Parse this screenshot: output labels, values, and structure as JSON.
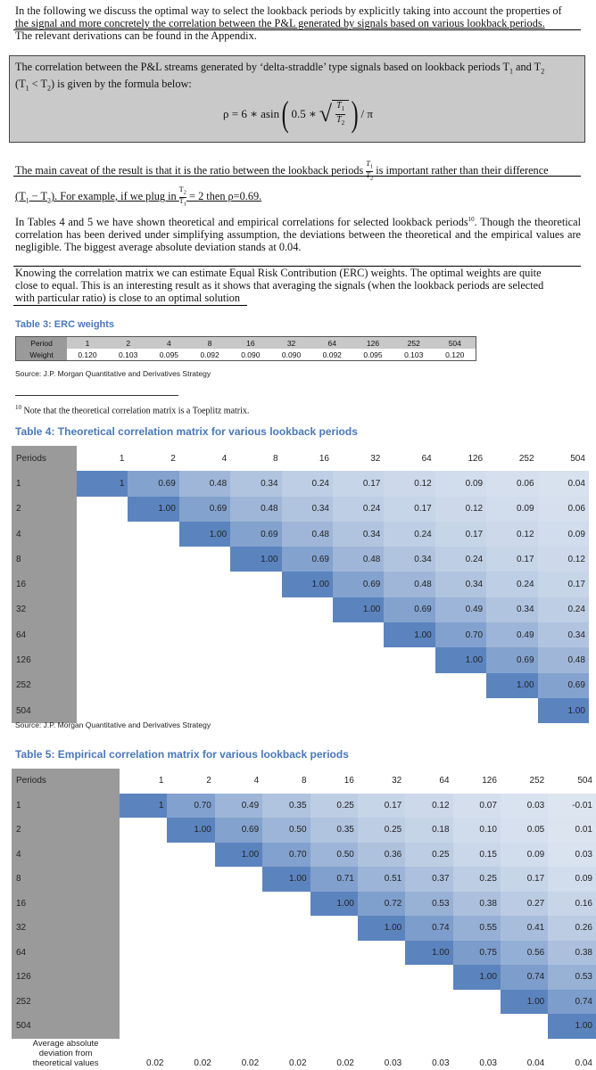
{
  "intro": {
    "line1": "In the following we discuss the optimal way to select the lookback periods by explicitly taking into account the properties of",
    "line2": "the signal and more concretely the correlation between the P&L generated by signals based on various lookback periods.",
    "line3": "The relevant derivations can be found in the Appendix."
  },
  "box": {
    "text_a": "The correlation between the P&L streams generated by ‘delta-straddle’ type signals based on lookback periods T",
    "text_b": " and T",
    "text_c": "(T",
    "text_d": " < T",
    "text_e": ") is given by the formula below:",
    "formula_lhs": "ρ = 6 ∗ asin",
    "formula_mid": "0.5 ∗",
    "formula_rhs": "/ π",
    "t1": "T",
    "sub1": "1",
    "t2": "T",
    "sub2": "2"
  },
  "caveat": {
    "a": "The main caveat of the result is that it is the ratio between the lookback periods",
    "b": "is important rather than their difference",
    "c": "(T",
    "d": " − T",
    "e": "). For example, if we plug in",
    "f": "= 2 then ρ=0.69."
  },
  "tables_para": {
    "a": "In Tables 4 and 5 we have shown theoretical and empirical correlations for selected lookback periods",
    "ref": "10",
    "b": ". Though the theoretical correlation has been derived under simplifying assumption, the deviations between the theoretical and the empirical values are negligible. The biggest average absolute deviation stands at 0.04."
  },
  "erc_para": {
    "line1": "Knowing the correlation matrix we can estimate Equal Risk Contribution (ERC) weights. The optimal weights are quite",
    "line2": "close to equal. This is an interesting result as it shows that averaging the signals (when the lookback periods are selected",
    "line3": "with particular ratio) is close to an optimal solution"
  },
  "table3": {
    "caption": "Table 3: ERC weights",
    "row1_label": "Period",
    "row2_label": "Weight",
    "periods": [
      "1",
      "2",
      "4",
      "8",
      "16",
      "32",
      "64",
      "126",
      "252",
      "504"
    ],
    "weights": [
      "0.120",
      "0.103",
      "0.095",
      "0.092",
      "0.090",
      "0.090",
      "0.092",
      "0.095",
      "0.103",
      "0.120"
    ],
    "source": "Source: J.P. Morgan Quantitative and Derivatives Strategy"
  },
  "footnote": {
    "num": "10",
    "text": " Note that the theoretical correlation matrix is a Toeplitz matrix."
  },
  "table4": {
    "caption": "Table 4: Theoretical correlation matrix for various lookback periods",
    "corner": "Periods",
    "periods": [
      "1",
      "2",
      "4",
      "8",
      "16",
      "32",
      "64",
      "126",
      "252",
      "504"
    ],
    "rows": [
      [
        "1",
        "0.69",
        "0.48",
        "0.34",
        "0.24",
        "0.17",
        "0.12",
        "0.09",
        "0.06",
        "0.04"
      ],
      [
        "1.00",
        "0.69",
        "0.48",
        "0.34",
        "0.24",
        "0.17",
        "0.12",
        "0.09",
        "0.06"
      ],
      [
        "1.00",
        "0.69",
        "0.48",
        "0.34",
        "0.24",
        "0.17",
        "0.12",
        "0.09"
      ],
      [
        "1.00",
        "0.69",
        "0.48",
        "0.34",
        "0.24",
        "0.17",
        "0.12"
      ],
      [
        "1.00",
        "0.69",
        "0.48",
        "0.34",
        "0.24",
        "0.17"
      ],
      [
        "1.00",
        "0.69",
        "0.49",
        "0.34",
        "0.24"
      ],
      [
        "1.00",
        "0.70",
        "0.49",
        "0.34"
      ],
      [
        "1.00",
        "0.69",
        "0.48"
      ],
      [
        "1.00",
        "0.69"
      ],
      [
        "1.00"
      ]
    ],
    "source": "Source: J.P. Morgan Quantitative and Derivatives Strategy"
  },
  "table5": {
    "caption": "Table 5: Empirical correlation matrix for various lookback periods",
    "corner": "Periods",
    "periods": [
      "1",
      "2",
      "4",
      "8",
      "16",
      "32",
      "64",
      "126",
      "252",
      "504"
    ],
    "rows": [
      [
        "1",
        "0.70",
        "0.49",
        "0.35",
        "0.25",
        "0.17",
        "0.12",
        "0.07",
        "0.03",
        "-0.01"
      ],
      [
        "1.00",
        "0.69",
        "0.50",
        "0.35",
        "0.25",
        "0.18",
        "0.10",
        "0.05",
        "0.01"
      ],
      [
        "1.00",
        "0.70",
        "0.50",
        "0.36",
        "0.25",
        "0.15",
        "0.09",
        "0.03"
      ],
      [
        "1.00",
        "0.71",
        "0.51",
        "0.37",
        "0.25",
        "0.17",
        "0.09"
      ],
      [
        "1.00",
        "0.72",
        "0.53",
        "0.38",
        "0.27",
        "0.16"
      ],
      [
        "1.00",
        "0.74",
        "0.55",
        "0.41",
        "0.26"
      ],
      [
        "1.00",
        "0.75",
        "0.56",
        "0.38"
      ],
      [
        "1.00",
        "0.74",
        "0.53"
      ],
      [
        "1.00",
        "0.74"
      ],
      [
        "1.00"
      ]
    ],
    "avg_label_1": "Average absolute",
    "avg_label_2": "deviation from",
    "avg_label_3": "theoretical values",
    "avg_values": [
      "0.02",
      "0.02",
      "0.02",
      "0.02",
      "0.02",
      "0.03",
      "0.03",
      "0.03",
      "0.04",
      "0.04"
    ]
  },
  "colors": {
    "heat_high": "#5b84bf",
    "heat_low": "#dde5f0",
    "label_gray": "#9a9a9a",
    "caption_blue": "#4a78b8"
  }
}
